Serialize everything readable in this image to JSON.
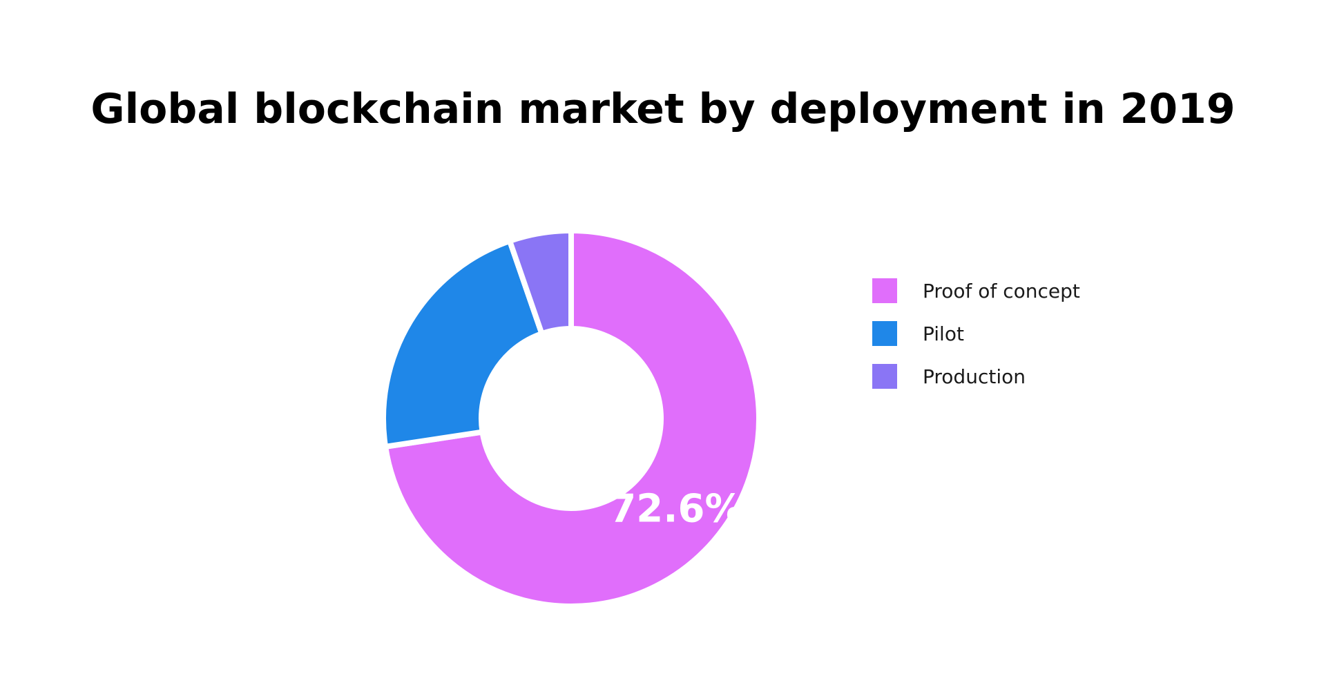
{
  "chart_data": {
    "type": "pie",
    "title": "Global blockchain market by deployment in 2019",
    "donut": true,
    "legend_position": "right",
    "categories": [
      "Proof of concept",
      "Pilot",
      "Production"
    ],
    "values": [
      72.6,
      22.1,
      5.3
    ],
    "colors": [
      "#E06EFB",
      "#1F87E8",
      "#8A75F5"
    ],
    "data_labels": [
      "72.6%",
      "",
      ""
    ]
  }
}
